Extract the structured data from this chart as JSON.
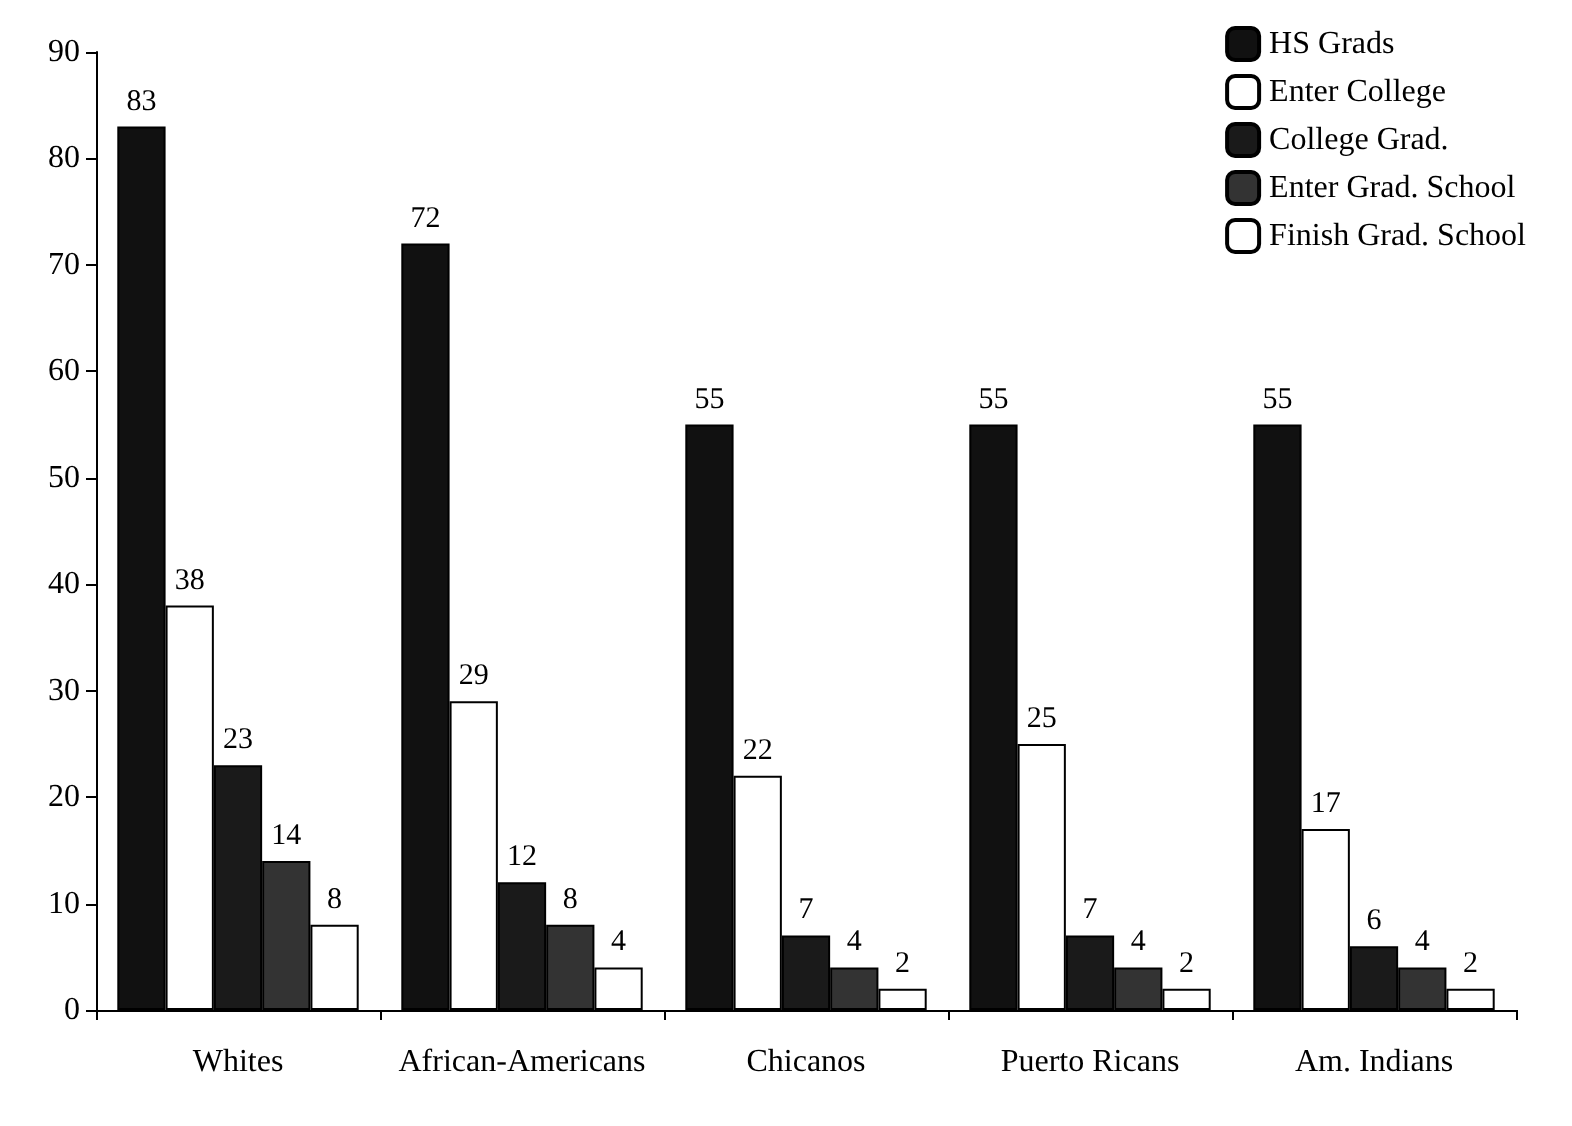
{
  "chart_data": {
    "type": "bar",
    "categories": [
      "Whites",
      "African-Americans",
      "Chicanos",
      "Puerto Ricans",
      "Am. Indians"
    ],
    "series": [
      {
        "name": "HS Grads",
        "color": "#111111",
        "values": [
          83,
          72,
          55,
          55,
          55
        ]
      },
      {
        "name": "Enter College",
        "color": "#ffffff",
        "values": [
          38,
          29,
          22,
          25,
          17
        ]
      },
      {
        "name": "College Grad.",
        "color": "#1a1a1a",
        "values": [
          23,
          12,
          7,
          7,
          6
        ]
      },
      {
        "name": "Enter Grad. School",
        "color": "#333333",
        "values": [
          14,
          8,
          4,
          4,
          4
        ]
      },
      {
        "name": "Finish Grad. School",
        "color": "#ffffff",
        "values": [
          8,
          4,
          2,
          2,
          2
        ]
      }
    ],
    "ylim": [
      0,
      90
    ],
    "yticks": [
      0,
      10,
      20,
      30,
      40,
      50,
      60,
      70,
      80,
      90
    ],
    "grid": false,
    "legend": "top right",
    "data_labels": true
  }
}
